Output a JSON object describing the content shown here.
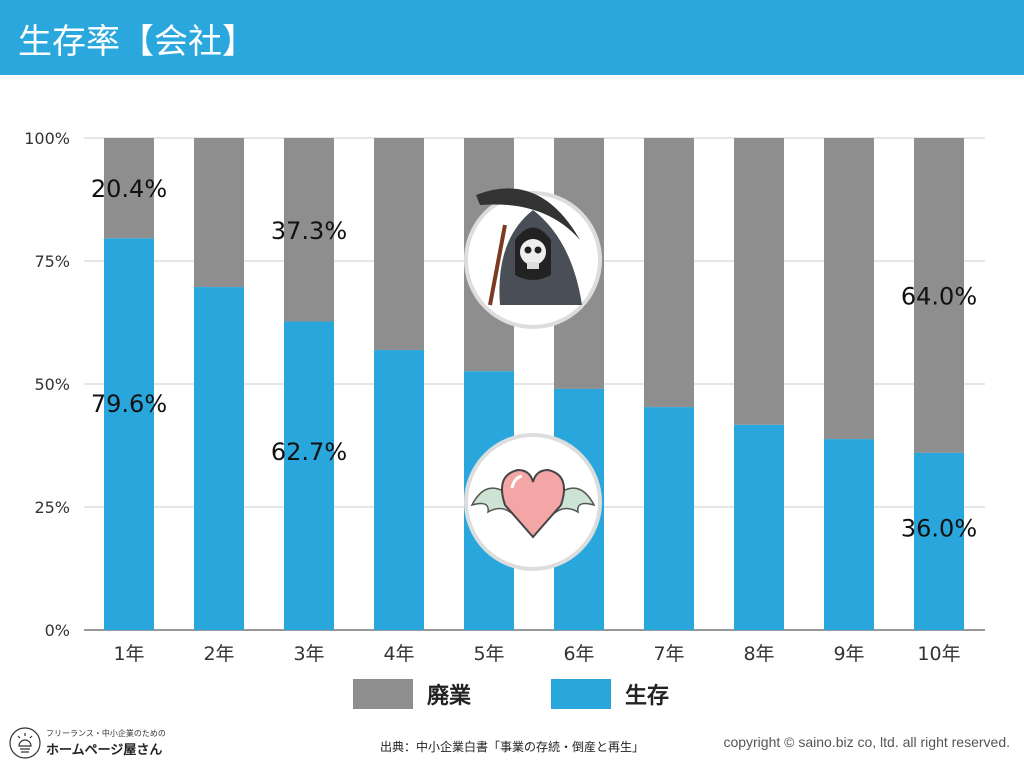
{
  "header": {
    "title": "生存率【会社】"
  },
  "colors": {
    "header": "#2aa7dd",
    "survival": "#29a6dc",
    "closure": "#8e8e8e",
    "grid": "#cccccc"
  },
  "chart_data": {
    "type": "bar",
    "stacked": true,
    "title": "生存率【会社】",
    "categories": [
      "1年",
      "2年",
      "3年",
      "4年",
      "5年",
      "6年",
      "7年",
      "8年",
      "9年",
      "10年"
    ],
    "series": [
      {
        "name": "生存",
        "values": [
          79.6,
          69.7,
          62.7,
          56.9,
          52.6,
          49.0,
          45.3,
          41.7,
          38.8,
          36.0
        ]
      },
      {
        "name": "廃業",
        "values": [
          20.4,
          30.3,
          37.3,
          43.1,
          47.4,
          51.0,
          54.7,
          58.3,
          61.2,
          64.0
        ]
      }
    ],
    "yticks": [
      "0%",
      "25%",
      "50%",
      "75%",
      "100%"
    ],
    "ylim": [
      0,
      100
    ],
    "grid": true,
    "legend_position": "bottom",
    "data_labels": [
      {
        "bar": 0,
        "series": 1,
        "text": "20.4%"
      },
      {
        "bar": 2,
        "series": 1,
        "text": "37.3%"
      },
      {
        "bar": 9,
        "series": 1,
        "text": "64.0%"
      },
      {
        "bar": 0,
        "series": 0,
        "text": "79.6%"
      },
      {
        "bar": 2,
        "series": 0,
        "text": "62.7%"
      },
      {
        "bar": 9,
        "series": 0,
        "text": "36.0%"
      }
    ]
  },
  "legend": {
    "closure": "廃業",
    "survival": "生存"
  },
  "footer": {
    "source": "出典：中小企業白書「事業の存続・倒産と再生」",
    "copyright": "copyright © saino.biz co, ltd. all right reserved.",
    "logo_tagline": "フリーランス・中小企業のための",
    "logo_name": "ホームページ屋さん"
  }
}
